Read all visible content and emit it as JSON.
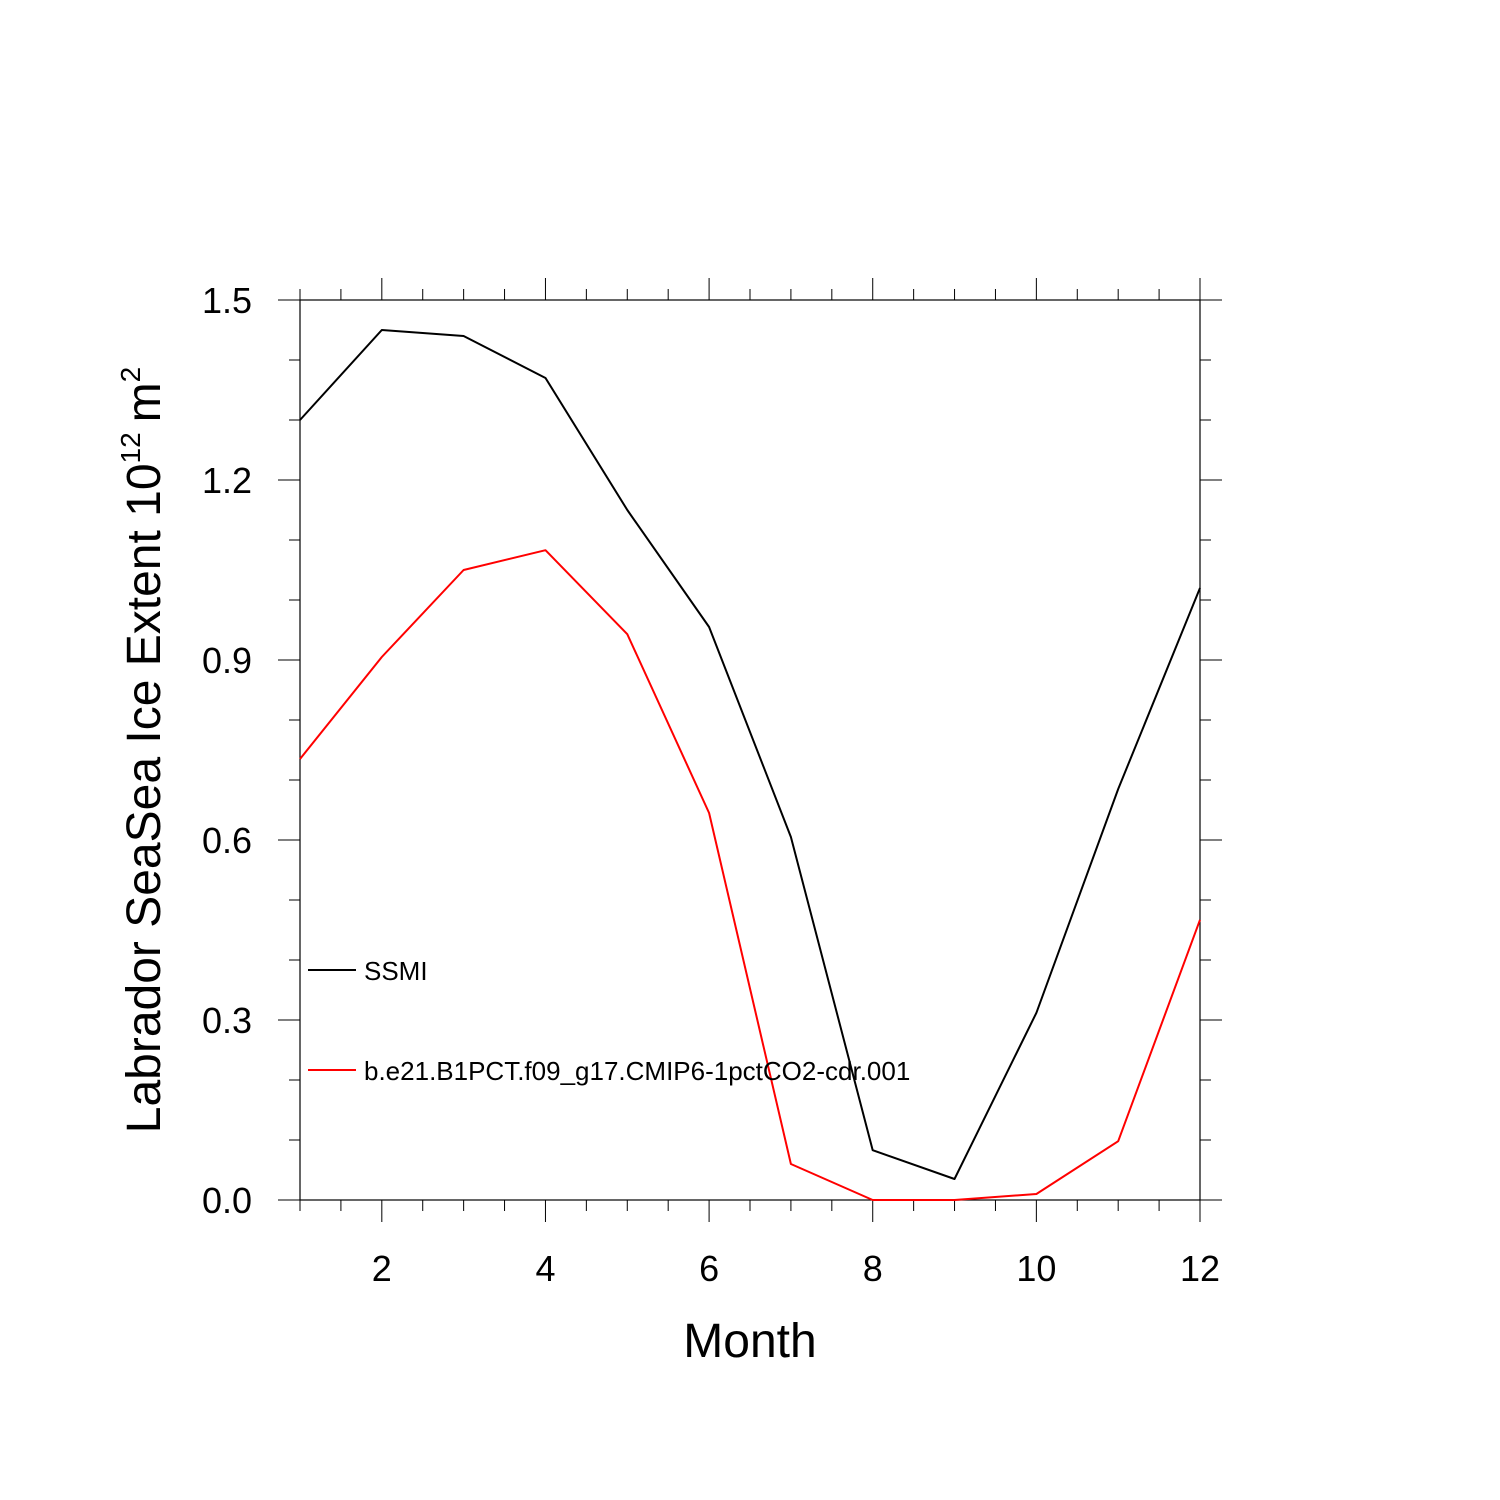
{
  "chart_data": {
    "type": "line",
    "xlabel": "Month",
    "ylabel": "Labrador SeaSea Ice Extent 10",
    "ylabel_sup": "12",
    "ylabel_unit": "m",
    "ylabel_unit_sup": "2",
    "xlim": [
      1,
      12
    ],
    "ylim": [
      0,
      1.5
    ],
    "x_ticks": [
      2,
      4,
      6,
      8,
      10,
      12
    ],
    "x_tick_labels": [
      "2",
      "4",
      "6",
      "8",
      "10",
      "12"
    ],
    "y_ticks": [
      0,
      0.3,
      0.6,
      0.9,
      1.2,
      1.5
    ],
    "y_tick_labels": [
      "0.0",
      "0.3",
      "0.6",
      "0.9",
      "1.2",
      "1.5"
    ],
    "x": [
      1,
      2,
      3,
      4,
      5,
      6,
      7,
      8,
      9,
      10,
      11,
      12
    ],
    "series": [
      {
        "name": "SSMI",
        "color": "#000000",
        "values": [
          1.3,
          1.45,
          1.44,
          1.37,
          1.15,
          0.955,
          0.605,
          0.083,
          0.035,
          0.312,
          0.685,
          1.02
        ]
      },
      {
        "name": "b.e21.B1PCT.f09_g17.CMIP6-1pctCO2-cdr.001",
        "color": "#ff0000",
        "values": [
          0.735,
          0.905,
          1.05,
          1.083,
          0.943,
          0.645,
          0.06,
          0.0,
          0.0,
          0.01,
          0.098,
          0.467
        ]
      }
    ],
    "grid": false,
    "legend_position": "inside-lower-left"
  }
}
